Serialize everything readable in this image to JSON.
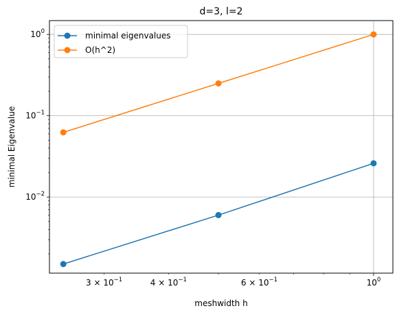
{
  "chart_data": {
    "type": "line",
    "title": "d=3, l=2",
    "xlabel": "meshwidth h",
    "ylabel": "minimal Eigenvalue",
    "xscale": "log",
    "yscale": "log",
    "xlim": [
      0.235,
      1.09
    ],
    "ylim": [
      0.00116,
      1.48
    ],
    "grid": "major",
    "legend": "top-left",
    "x_ticks": [
      {
        "value": 0.3,
        "base": "3 × 10",
        "exp": "−1"
      },
      {
        "value": 0.4,
        "base": "4 × 10",
        "exp": "−1"
      },
      {
        "value": 0.6,
        "base": "6 × 10",
        "exp": "−1"
      },
      {
        "value": 1.0,
        "base": "10",
        "exp": "0"
      }
    ],
    "y_ticks": [
      {
        "value": 0.01,
        "base": "10",
        "exp": "−2"
      },
      {
        "value": 0.1,
        "base": "10",
        "exp": "−1"
      },
      {
        "value": 1.0,
        "base": "10",
        "exp": "0"
      }
    ],
    "series": [
      {
        "name": "minimal eigenvalues",
        "color": "#1f77b4",
        "x": [
          0.25,
          0.5,
          1.0
        ],
        "y": [
          0.0015,
          0.006,
          0.026
        ]
      },
      {
        "name": "O(h^2)",
        "color": "#ff7f0e",
        "x": [
          0.25,
          0.5,
          1.0
        ],
        "y": [
          0.0625,
          0.25,
          1.0
        ]
      }
    ]
  }
}
